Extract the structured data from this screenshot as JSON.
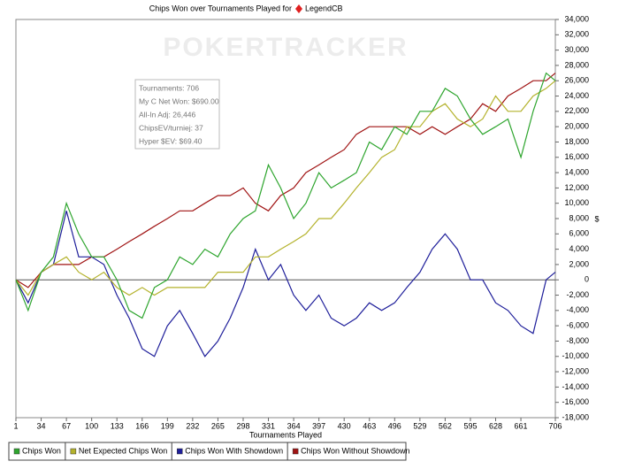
{
  "chart_data": {
    "type": "line",
    "title": "Chips Won over Tournaments Played for",
    "player": "LegendCB",
    "watermark": "POKERTRACKER",
    "x_label": "Tournaments Played",
    "y_label": "$",
    "tooltip": [
      "Tournaments: 706",
      "My C Net Won: $690.00",
      "All-In Adj: 26,446",
      "ChipsEV/turniej: 37",
      "Hyper $EV: $69.40"
    ],
    "x": [
      1,
      17,
      34,
      50,
      67,
      83,
      100,
      116,
      133,
      149,
      166,
      182,
      199,
      215,
      232,
      248,
      265,
      281,
      298,
      314,
      331,
      347,
      364,
      380,
      397,
      413,
      430,
      446,
      463,
      479,
      496,
      512,
      529,
      545,
      562,
      578,
      595,
      611,
      628,
      644,
      661,
      677,
      694,
      706
    ],
    "xlim": [
      1,
      706
    ],
    "xticks": [
      1,
      34,
      67,
      100,
      133,
      166,
      199,
      232,
      265,
      298,
      331,
      364,
      397,
      430,
      463,
      496,
      529,
      562,
      595,
      628,
      661,
      706
    ],
    "ylim": [
      -18000,
      34000
    ],
    "yticks": [
      {
        "value": -18000,
        "label": "-18,000"
      },
      {
        "value": -16000,
        "label": "-16,000"
      },
      {
        "value": -14000,
        "label": "-14,000"
      },
      {
        "value": -12000,
        "label": "-12,000"
      },
      {
        "value": -10000,
        "label": "-10,000"
      },
      {
        "value": -8000,
        "label": "-8,000"
      },
      {
        "value": -6000,
        "label": "-6,000"
      },
      {
        "value": -4000,
        "label": "-4,000"
      },
      {
        "value": -2000,
        "label": "-2,000"
      },
      0,
      {
        "value": 2000,
        "label": "2,000"
      },
      {
        "value": 4000,
        "label": "4,000"
      },
      {
        "value": 6000,
        "label": "6,000"
      },
      {
        "value": 8000,
        "label": "8,000"
      },
      {
        "value": 10000,
        "label": "10,000"
      },
      {
        "value": 12000,
        "label": "12,000"
      },
      {
        "value": 14000,
        "label": "14,000"
      },
      {
        "value": 16000,
        "label": "16,000"
      },
      {
        "value": 18000,
        "label": "18,000"
      },
      {
        "value": 20000,
        "label": "20,000"
      },
      {
        "value": 22000,
        "label": "22,000"
      },
      {
        "value": 24000,
        "label": "24,000"
      },
      {
        "value": 26000,
        "label": "26,000"
      },
      {
        "value": 28000,
        "label": "28,000"
      },
      {
        "value": 30000,
        "label": "30,000"
      },
      {
        "value": 32000,
        "label": "32,000"
      },
      {
        "value": 34000,
        "label": "34,000"
      }
    ],
    "grid": false,
    "series": [
      {
        "name": "Chips Won",
        "color": "#2ea52e",
        "values": [
          0,
          -4000,
          1000,
          3000,
          10000,
          6000,
          3000,
          3000,
          0,
          -4000,
          -5000,
          -1000,
          0,
          3000,
          2000,
          4000,
          3000,
          6000,
          8000,
          9000,
          15000,
          12000,
          8000,
          10000,
          14000,
          12000,
          13000,
          14000,
          18000,
          17000,
          20000,
          19000,
          22000,
          22000,
          25000,
          24000,
          21000,
          19000,
          20000,
          21000,
          16000,
          22000,
          27000,
          26000
        ]
      },
      {
        "name": "Net Expected Chips Won",
        "color": "#b4b22c",
        "values": [
          0,
          -2000,
          1000,
          2000,
          3000,
          1000,
          0,
          1000,
          -1000,
          -2000,
          -1000,
          -2000,
          -1000,
          -1000,
          -1000,
          -1000,
          1000,
          1000,
          1000,
          3000,
          3000,
          4000,
          5000,
          6000,
          8000,
          8000,
          10000,
          12000,
          14000,
          16000,
          17000,
          20000,
          20000,
          22000,
          23000,
          21000,
          20000,
          21000,
          24000,
          22000,
          22000,
          24000,
          25000,
          26000
        ]
      },
      {
        "name": "Chips Won With Showdown",
        "color": "#1e1e9a",
        "values": [
          0,
          -3000,
          1000,
          2000,
          9000,
          3000,
          3000,
          2000,
          -2000,
          -5000,
          -9000,
          -10000,
          -6000,
          -4000,
          -7000,
          -10000,
          -8000,
          -5000,
          -1000,
          4000,
          0,
          2000,
          -2000,
          -4000,
          -2000,
          -5000,
          -6000,
          -5000,
          -3000,
          -4000,
          -3000,
          -1000,
          1000,
          4000,
          6000,
          4000,
          0,
          0,
          -3000,
          -4000,
          -6000,
          -7000,
          0,
          1000
        ]
      },
      {
        "name": "Chips Won Without Showdown",
        "color": "#a01414",
        "values": [
          0,
          -1000,
          1000,
          2000,
          2000,
          2000,
          3000,
          3000,
          4000,
          5000,
          6000,
          7000,
          8000,
          9000,
          9000,
          10000,
          11000,
          11000,
          12000,
          10000,
          9000,
          11000,
          12000,
          14000,
          15000,
          16000,
          17000,
          19000,
          20000,
          20000,
          20000,
          20000,
          19000,
          20000,
          19000,
          20000,
          21000,
          23000,
          22000,
          24000,
          25000,
          26000,
          26000,
          27000
        ]
      }
    ]
  }
}
